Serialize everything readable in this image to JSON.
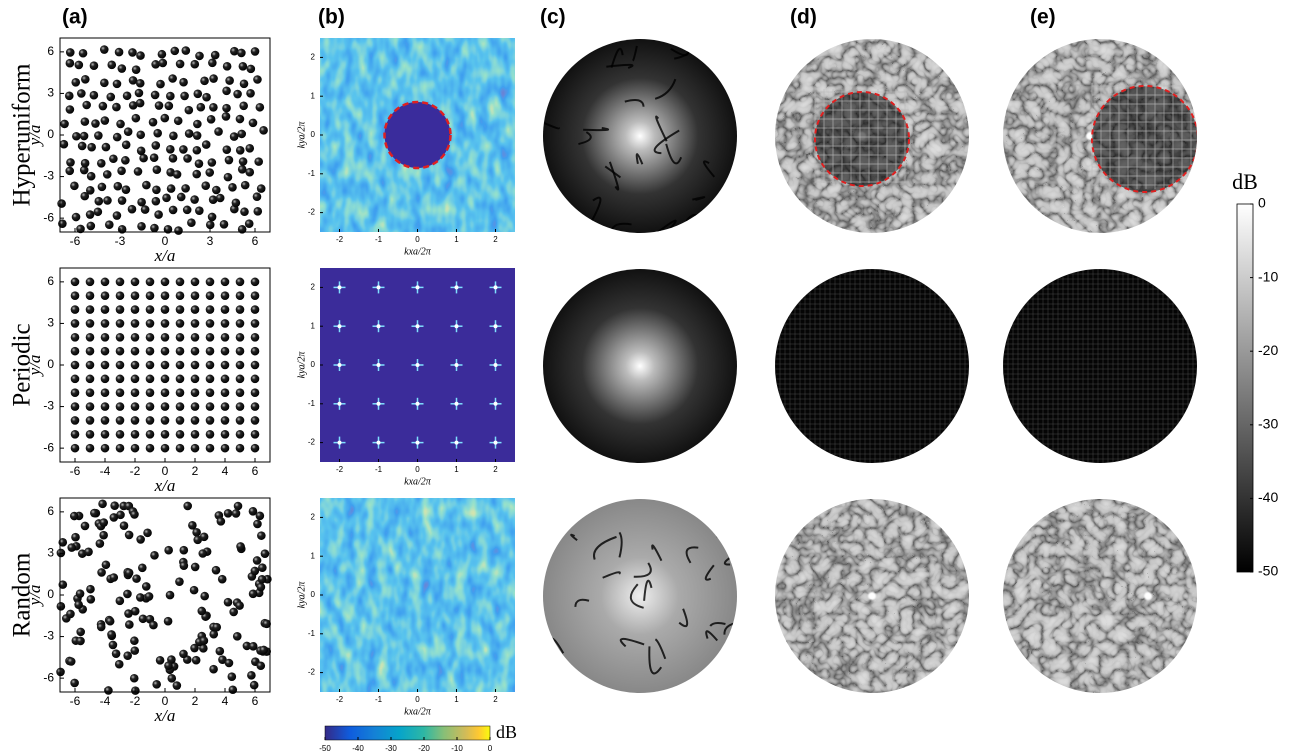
{
  "panel_labels": [
    "(a)",
    "(b)",
    "(c)",
    "(d)",
    "(e)"
  ],
  "row_labels": [
    "Hyperuniform",
    "Periodic",
    "Random"
  ],
  "real_space": {
    "x_label": "x/a",
    "y_label": "y/a",
    "xlim": [
      -7,
      7
    ],
    "ylim": [
      -7,
      7
    ],
    "rows": [
      {
        "xticks": [
          -6,
          -3,
          0,
          3,
          6
        ],
        "yticks": [
          -6,
          -3,
          0,
          3,
          6
        ]
      },
      {
        "xticks": [
          -6,
          -4,
          -2,
          0,
          2,
          4,
          6
        ],
        "yticks": [
          -6,
          -3,
          0,
          3,
          6
        ]
      },
      {
        "xticks": [
          -6,
          -4,
          -2,
          0,
          2,
          4,
          6
        ],
        "yticks": [
          -6,
          -3,
          0,
          3,
          6
        ]
      }
    ]
  },
  "k_space": {
    "x_label": "kxa/2π",
    "y_label": "kya/2π",
    "xlim": [
      -2.5,
      2.5
    ],
    "ylim": [
      -2.5,
      2.5
    ],
    "xticks": [
      -2,
      -1,
      0,
      1,
      2
    ],
    "yticks": [
      -2,
      -1,
      0,
      1,
      2
    ]
  },
  "colorbar_b": {
    "label": "dB",
    "lim": [
      -50,
      0
    ],
    "ticks": [
      -50,
      -40,
      -30,
      -20,
      -10,
      0
    ]
  },
  "colorbar_right": {
    "label": "dB",
    "lim": [
      -50,
      0
    ],
    "ticks": [
      0,
      -10,
      -20,
      -30,
      -40,
      -50
    ]
  }
}
